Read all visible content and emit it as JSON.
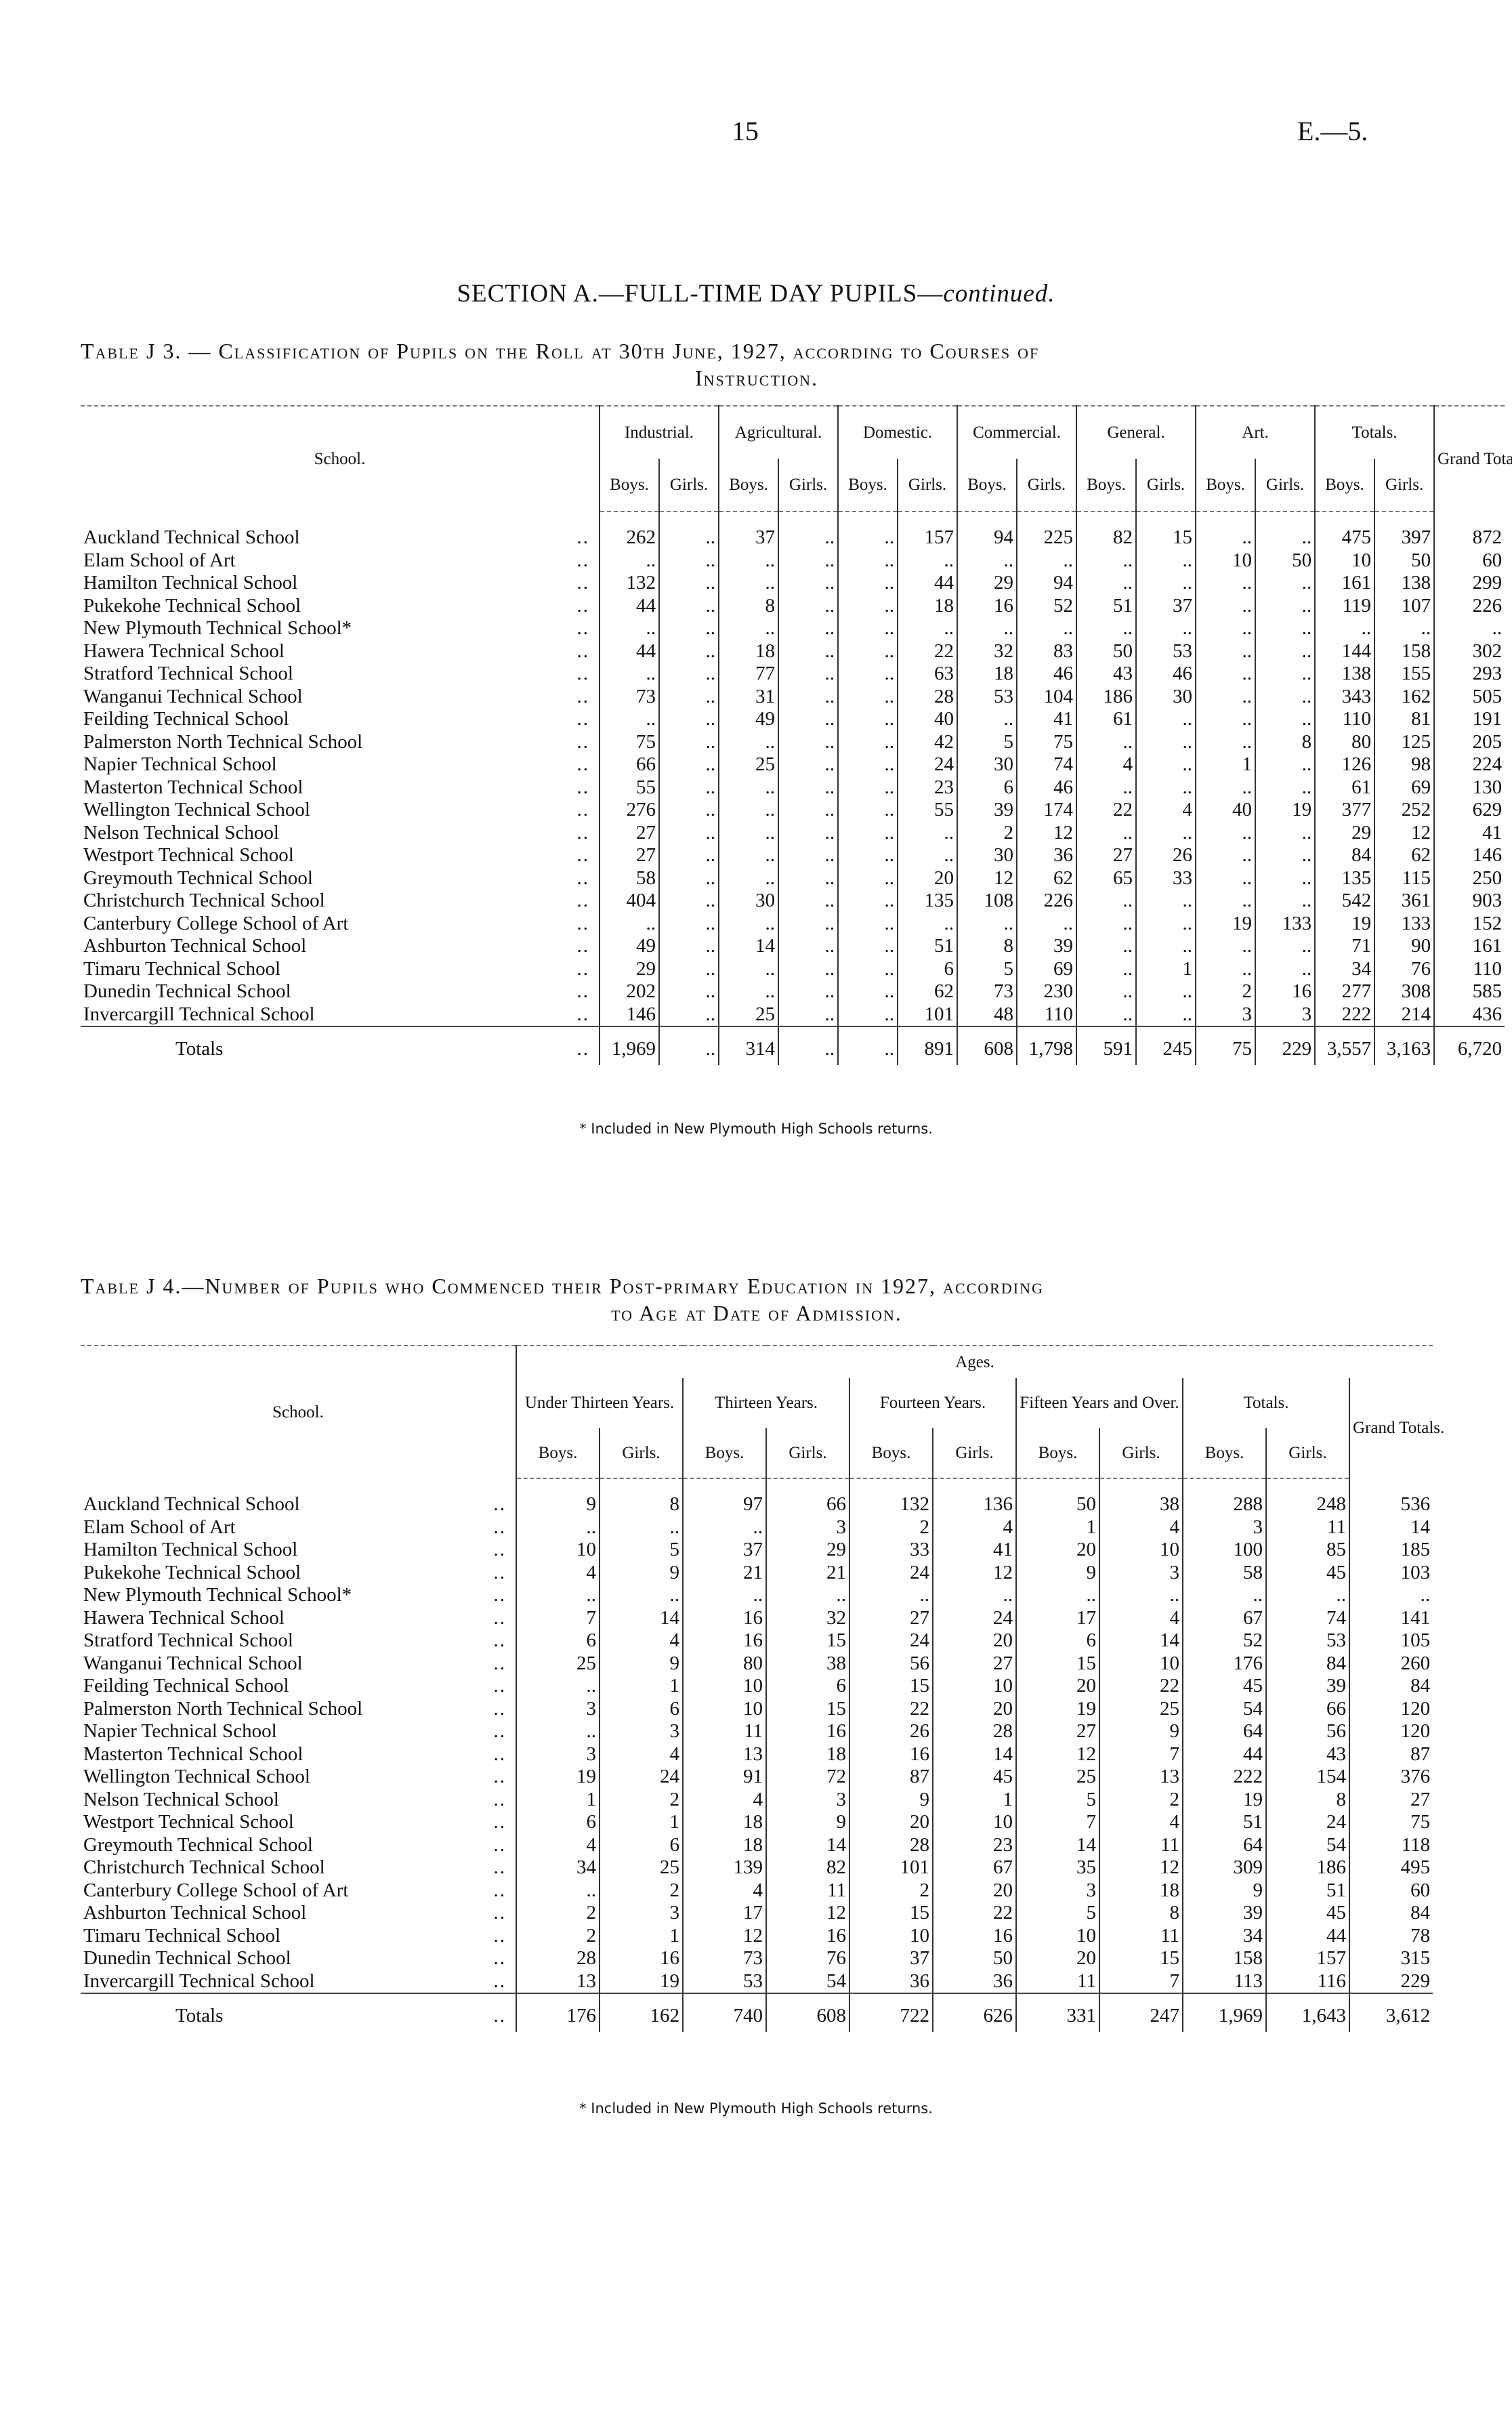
{
  "page": {
    "number": "15",
    "doc_ref": "E.—5."
  },
  "section_title": {
    "main": "SECTION A.—FULL-TIME DAY PUPILS—",
    "italic": "continued."
  },
  "leader": "..",
  "table_j3": {
    "caption_line1": "Table J 3. — Classification of Pupils on the Roll at 30th June, 1927, according to Courses of",
    "caption_line2": "Instruction.",
    "school_header": "School.",
    "groups": [
      "Industrial.",
      "Agricultural.",
      "Domestic.",
      "Commercial.",
      "General.",
      "Art.",
      "Totals."
    ],
    "grand_header": "Grand Totals.",
    "boys": "Boys.",
    "girls": "Girls.",
    "rows": [
      {
        "school": "Auckland Technical School",
        "values": [
          "262",
          "..",
          "37",
          "..",
          "..",
          "157",
          "94",
          "225",
          "82",
          "15",
          "..",
          "..",
          "475",
          "397",
          "872"
        ]
      },
      {
        "school": "Elam School of Art",
        "values": [
          "..",
          "..",
          "..",
          "..",
          "..",
          "..",
          "..",
          "..",
          "..",
          "..",
          "10",
          "50",
          "10",
          "50",
          "60"
        ]
      },
      {
        "school": "Hamilton Technical School",
        "values": [
          "132",
          "..",
          "..",
          "..",
          "..",
          "44",
          "29",
          "94",
          "..",
          "..",
          "..",
          "..",
          "161",
          "138",
          "299"
        ]
      },
      {
        "school": "Pukekohe Technical School",
        "values": [
          "44",
          "..",
          "8",
          "..",
          "..",
          "18",
          "16",
          "52",
          "51",
          "37",
          "..",
          "..",
          "119",
          "107",
          "226"
        ]
      },
      {
        "school": "New Plymouth Technical School*",
        "values": [
          "..",
          "..",
          "..",
          "..",
          "..",
          "..",
          "..",
          "..",
          "..",
          "..",
          "..",
          "..",
          "..",
          "..",
          ".."
        ]
      },
      {
        "school": "Hawera Technical School",
        "values": [
          "44",
          "..",
          "18",
          "..",
          "..",
          "22",
          "32",
          "83",
          "50",
          "53",
          "..",
          "..",
          "144",
          "158",
          "302"
        ]
      },
      {
        "school": "Stratford Technical School",
        "values": [
          "..",
          "..",
          "77",
          "..",
          "..",
          "63",
          "18",
          "46",
          "43",
          "46",
          "..",
          "..",
          "138",
          "155",
          "293"
        ]
      },
      {
        "school": "Wanganui Technical School",
        "values": [
          "73",
          "..",
          "31",
          "..",
          "..",
          "28",
          "53",
          "104",
          "186",
          "30",
          "..",
          "..",
          "343",
          "162",
          "505"
        ]
      },
      {
        "school": "Feilding Technical School",
        "values": [
          "..",
          "..",
          "49",
          "..",
          "..",
          "40",
          "..",
          "41",
          "61",
          "..",
          "..",
          "..",
          "110",
          "81",
          "191"
        ]
      },
      {
        "school": "Palmerston North Technical School",
        "values": [
          "75",
          "..",
          "..",
          "..",
          "..",
          "42",
          "5",
          "75",
          "..",
          "..",
          "..",
          "8",
          "80",
          "125",
          "205"
        ]
      },
      {
        "school": "Napier Technical School",
        "values": [
          "66",
          "..",
          "25",
          "..",
          "..",
          "24",
          "30",
          "74",
          "4",
          "..",
          "1",
          "..",
          "126",
          "98",
          "224"
        ]
      },
      {
        "school": "Masterton Technical School",
        "values": [
          "55",
          "..",
          "..",
          "..",
          "..",
          "23",
          "6",
          "46",
          "..",
          "..",
          "..",
          "..",
          "61",
          "69",
          "130"
        ]
      },
      {
        "school": "Wellington Technical School",
        "values": [
          "276",
          "..",
          "..",
          "..",
          "..",
          "55",
          "39",
          "174",
          "22",
          "4",
          "40",
          "19",
          "377",
          "252",
          "629"
        ]
      },
      {
        "school": "Nelson Technical School",
        "values": [
          "27",
          "..",
          "..",
          "..",
          "..",
          "..",
          "2",
          "12",
          "..",
          "..",
          "..",
          "..",
          "29",
          "12",
          "41"
        ]
      },
      {
        "school": "Westport Technical School",
        "values": [
          "27",
          "..",
          "..",
          "..",
          "..",
          "..",
          "30",
          "36",
          "27",
          "26",
          "..",
          "..",
          "84",
          "62",
          "146"
        ]
      },
      {
        "school": "Greymouth Technical School",
        "values": [
          "58",
          "..",
          "..",
          "..",
          "..",
          "20",
          "12",
          "62",
          "65",
          "33",
          "..",
          "..",
          "135",
          "115",
          "250"
        ]
      },
      {
        "school": "Christchurch Technical School",
        "values": [
          "404",
          "..",
          "30",
          "..",
          "..",
          "135",
          "108",
          "226",
          "..",
          "..",
          "..",
          "..",
          "542",
          "361",
          "903"
        ]
      },
      {
        "school": "Canterbury College School of Art",
        "values": [
          "..",
          "..",
          "..",
          "..",
          "..",
          "..",
          "..",
          "..",
          "..",
          "..",
          "19",
          "133",
          "19",
          "133",
          "152"
        ]
      },
      {
        "school": "Ashburton Technical School",
        "values": [
          "49",
          "..",
          "14",
          "..",
          "..",
          "51",
          "8",
          "39",
          "..",
          "..",
          "..",
          "..",
          "71",
          "90",
          "161"
        ]
      },
      {
        "school": "Timaru Technical School",
        "values": [
          "29",
          "..",
          "..",
          "..",
          "..",
          "6",
          "5",
          "69",
          "..",
          "1",
          "..",
          "..",
          "34",
          "76",
          "110"
        ]
      },
      {
        "school": "Dunedin Technical School",
        "values": [
          "202",
          "..",
          "..",
          "..",
          "..",
          "62",
          "73",
          "230",
          "..",
          "..",
          "2",
          "16",
          "277",
          "308",
          "585"
        ]
      },
      {
        "school": "Invercargill Technical School",
        "values": [
          "146",
          "..",
          "25",
          "..",
          "..",
          "101",
          "48",
          "110",
          "..",
          "..",
          "3",
          "3",
          "222",
          "214",
          "436"
        ]
      }
    ],
    "totals": {
      "label": "Totals",
      "values": [
        "1,969",
        "..",
        "314",
        "..",
        "..",
        "891",
        "608",
        "1,798",
        "591",
        "245",
        "75",
        "229",
        "3,557",
        "3,163",
        "6,720"
      ]
    },
    "footnote": "* Included in New Plymouth High Schools returns."
  },
  "table_j4": {
    "caption_line1": "Table J 4.—Number of Pupils who Commenced their Post-primary Education in 1927, according",
    "caption_line2": "to Age at Date of Admission.",
    "school_header": "School.",
    "ages_header": "Ages.",
    "groups": [
      "Under Thirteen Years.",
      "Thirteen Years.",
      "Fourteen Years.",
      "Fifteen Years and Over.",
      "Totals."
    ],
    "grand_header": "Grand Totals.",
    "boys": "Boys.",
    "girls": "Girls.",
    "rows": [
      {
        "school": "Auckland Technical School",
        "values": [
          "9",
          "8",
          "97",
          "66",
          "132",
          "136",
          "50",
          "38",
          "288",
          "248",
          "536"
        ]
      },
      {
        "school": "Elam School of Art",
        "values": [
          "..",
          "..",
          "..",
          "3",
          "2",
          "4",
          "1",
          "4",
          "3",
          "11",
          "14"
        ]
      },
      {
        "school": "Hamilton Technical School",
        "values": [
          "10",
          "5",
          "37",
          "29",
          "33",
          "41",
          "20",
          "10",
          "100",
          "85",
          "185"
        ]
      },
      {
        "school": "Pukekohe Technical School",
        "values": [
          "4",
          "9",
          "21",
          "21",
          "24",
          "12",
          "9",
          "3",
          "58",
          "45",
          "103"
        ]
      },
      {
        "school": "New Plymouth Technical School*",
        "values": [
          "..",
          "..",
          "..",
          "..",
          "..",
          "..",
          "..",
          "..",
          "..",
          "..",
          ".."
        ]
      },
      {
        "school": "Hawera Technical School",
        "values": [
          "7",
          "14",
          "16",
          "32",
          "27",
          "24",
          "17",
          "4",
          "67",
          "74",
          "141"
        ]
      },
      {
        "school": "Stratford Technical School",
        "values": [
          "6",
          "4",
          "16",
          "15",
          "24",
          "20",
          "6",
          "14",
          "52",
          "53",
          "105"
        ]
      },
      {
        "school": "Wanganui Technical School",
        "values": [
          "25",
          "9",
          "80",
          "38",
          "56",
          "27",
          "15",
          "10",
          "176",
          "84",
          "260"
        ]
      },
      {
        "school": "Feilding Technical School",
        "values": [
          "..",
          "1",
          "10",
          "6",
          "15",
          "10",
          "20",
          "22",
          "45",
          "39",
          "84"
        ]
      },
      {
        "school": "Palmerston North Technical School",
        "values": [
          "3",
          "6",
          "10",
          "15",
          "22",
          "20",
          "19",
          "25",
          "54",
          "66",
          "120"
        ]
      },
      {
        "school": "Napier Technical School",
        "values": [
          "..",
          "3",
          "11",
          "16",
          "26",
          "28",
          "27",
          "9",
          "64",
          "56",
          "120"
        ]
      },
      {
        "school": "Masterton Technical School",
        "values": [
          "3",
          "4",
          "13",
          "18",
          "16",
          "14",
          "12",
          "7",
          "44",
          "43",
          "87"
        ]
      },
      {
        "school": "Wellington Technical School",
        "values": [
          "19",
          "24",
          "91",
          "72",
          "87",
          "45",
          "25",
          "13",
          "222",
          "154",
          "376"
        ]
      },
      {
        "school": "Nelson Technical School",
        "values": [
          "1",
          "2",
          "4",
          "3",
          "9",
          "1",
          "5",
          "2",
          "19",
          "8",
          "27"
        ]
      },
      {
        "school": "Westport Technical School",
        "values": [
          "6",
          "1",
          "18",
          "9",
          "20",
          "10",
          "7",
          "4",
          "51",
          "24",
          "75"
        ]
      },
      {
        "school": "Greymouth Technical School",
        "values": [
          "4",
          "6",
          "18",
          "14",
          "28",
          "23",
          "14",
          "11",
          "64",
          "54",
          "118"
        ]
      },
      {
        "school": "Christchurch Technical School",
        "values": [
          "34",
          "25",
          "139",
          "82",
          "101",
          "67",
          "35",
          "12",
          "309",
          "186",
          "495"
        ]
      },
      {
        "school": "Canterbury College School of Art",
        "values": [
          "..",
          "2",
          "4",
          "11",
          "2",
          "20",
          "3",
          "18",
          "9",
          "51",
          "60"
        ]
      },
      {
        "school": "Ashburton Technical School",
        "values": [
          "2",
          "3",
          "17",
          "12",
          "15",
          "22",
          "5",
          "8",
          "39",
          "45",
          "84"
        ]
      },
      {
        "school": "Timaru Technical School",
        "values": [
          "2",
          "1",
          "12",
          "16",
          "10",
          "16",
          "10",
          "11",
          "34",
          "44",
          "78"
        ]
      },
      {
        "school": "Dunedin Technical School",
        "values": [
          "28",
          "16",
          "73",
          "76",
          "37",
          "50",
          "20",
          "15",
          "158",
          "157",
          "315"
        ]
      },
      {
        "school": "Invercargill Technical School",
        "values": [
          "13",
          "19",
          "53",
          "54",
          "36",
          "36",
          "11",
          "7",
          "113",
          "116",
          "229"
        ]
      }
    ],
    "totals": {
      "label": "Totals",
      "values": [
        "176",
        "162",
        "740",
        "608",
        "722",
        "626",
        "331",
        "247",
        "1,969",
        "1,643",
        "3,612"
      ]
    },
    "footnote": "* Included in New Plymouth High Schools returns."
  }
}
